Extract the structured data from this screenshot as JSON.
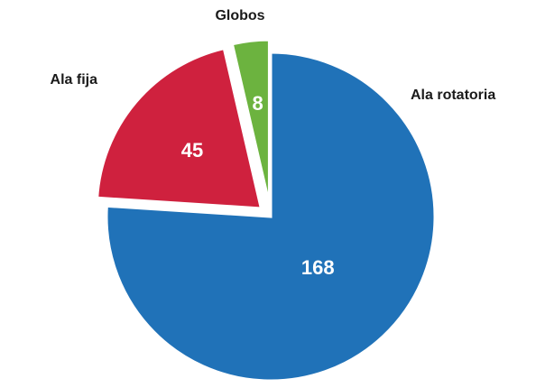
{
  "chart_data": {
    "type": "pie",
    "categories": [
      "Ala rotatoria",
      "Ala fija",
      "Globos"
    ],
    "values": [
      168,
      45,
      8
    ],
    "data_labels": [
      "168",
      "45",
      "8"
    ],
    "colors": [
      "#2072b8",
      "#cf213e",
      "#6cb33f"
    ],
    "exploded": [
      false,
      true,
      true
    ],
    "start_angle_deg": 0,
    "direction": "clockwise",
    "legend": "none",
    "title": ""
  }
}
